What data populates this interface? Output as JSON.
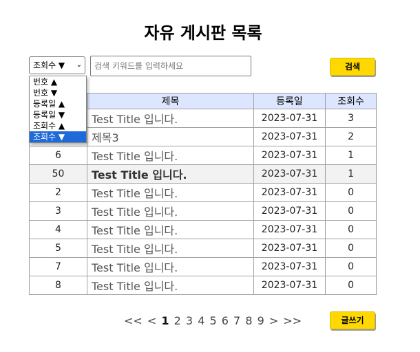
{
  "page": {
    "title": "자유 게시판 목록"
  },
  "search": {
    "sort_value": "조회수 ▼",
    "placeholder": "검색 키워드를 입력하세요",
    "button_label": "검색"
  },
  "sort_options": [
    {
      "label": "번호 ▲",
      "selected": false
    },
    {
      "label": "번호 ▼",
      "selected": false
    },
    {
      "label": "등록일 ▲",
      "selected": false
    },
    {
      "label": "등록일 ▼",
      "selected": false
    },
    {
      "label": "조회수 ▲",
      "selected": false
    },
    {
      "label": "조회수 ▼",
      "selected": true
    }
  ],
  "table": {
    "headers": {
      "no": "",
      "title": "제목",
      "date": "등록일",
      "views": "조회수"
    },
    "rows": [
      {
        "no": "",
        "title": "Test Title 입니다.",
        "date": "2023-07-31",
        "views": "3"
      },
      {
        "no": "",
        "title": "제목3",
        "date": "2023-07-31",
        "views": "2"
      },
      {
        "no": "6",
        "title": "Test Title 입니다.",
        "date": "2023-07-31",
        "views": "1"
      },
      {
        "no": "50",
        "title": "Test Title 입니다.",
        "date": "2023-07-31",
        "views": "1"
      },
      {
        "no": "2",
        "title": "Test Title 입니다.",
        "date": "2023-07-31",
        "views": "0"
      },
      {
        "no": "3",
        "title": "Test Title 입니다.",
        "date": "2023-07-31",
        "views": "0"
      },
      {
        "no": "4",
        "title": "Test Title 입니다.",
        "date": "2023-07-31",
        "views": "0"
      },
      {
        "no": "5",
        "title": "Test Title 입니다.",
        "date": "2023-07-31",
        "views": "0"
      },
      {
        "no": "7",
        "title": "Test Title 입니다.",
        "date": "2023-07-31",
        "views": "0"
      },
      {
        "no": "8",
        "title": "Test Title 입니다.",
        "date": "2023-07-31",
        "views": "0"
      }
    ]
  },
  "pagination": {
    "first": "<<",
    "prev": "<",
    "pages": [
      "1",
      "2",
      "3",
      "4",
      "5",
      "6",
      "7",
      "8",
      "9"
    ],
    "current": "1",
    "next": ">",
    "last": ">>"
  },
  "write_button": "글쓰기"
}
